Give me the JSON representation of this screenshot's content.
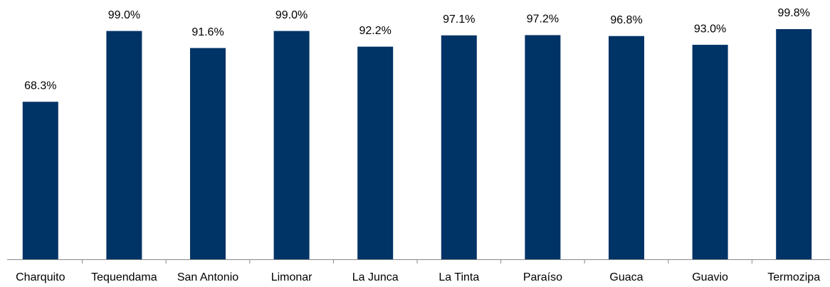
{
  "chart_data": {
    "type": "bar",
    "categories": [
      "Charquito",
      "Tequendama",
      "San Antonio",
      "Limonar",
      "La Junca",
      "La Tinta",
      "Paraíso",
      "Guaca",
      "Guavio",
      "Termozipa"
    ],
    "values": [
      68.3,
      99.0,
      91.6,
      99.0,
      92.2,
      97.1,
      97.2,
      96.8,
      93.0,
      99.8
    ],
    "value_labels": [
      "68.3%",
      "99.0%",
      "91.6%",
      "99.0%",
      "92.2%",
      "97.1%",
      "97.2%",
      "96.8%",
      "93.0%",
      "99.8%"
    ],
    "color": "#003366"
  }
}
